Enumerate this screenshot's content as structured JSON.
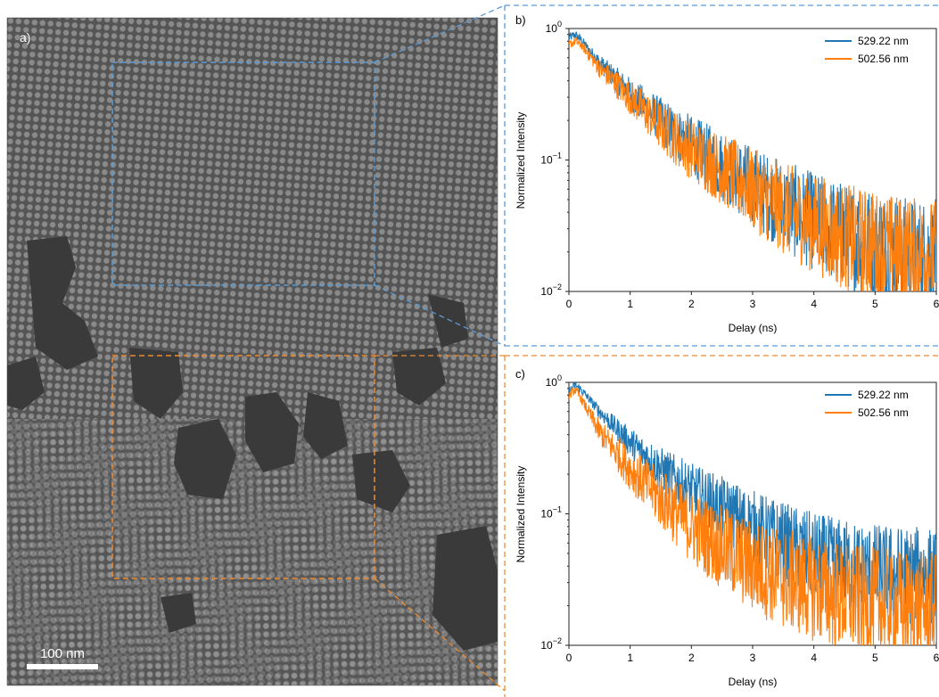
{
  "panel_a": {
    "label": "a)",
    "scale_bar_label": "100 nm"
  },
  "chart_data": [
    {
      "type": "line",
      "panel_label": "b)",
      "xlabel": "Delay (ns)",
      "ylabel": "Normalized Intensity",
      "x_ticks": [
        "0",
        "1",
        "2",
        "3",
        "4",
        "5",
        "6"
      ],
      "y_ticks": [
        "10^-2",
        "10^-1",
        "10^0"
      ],
      "xlim": [
        0,
        6
      ],
      "ylim": [
        0.01,
        1
      ],
      "y_scale": "log",
      "legend_position": "top-right",
      "series": [
        {
          "name": "529.22 nm",
          "color": "#1f77b4",
          "x": [
            0,
            0.1,
            0.2,
            0.5,
            1.0,
            1.5,
            2.0,
            2.5,
            3.0,
            3.5,
            4.0,
            4.5,
            5.0,
            5.5,
            6.0
          ],
          "y": [
            0.85,
            0.9,
            0.82,
            0.55,
            0.32,
            0.2,
            0.13,
            0.09,
            0.063,
            0.045,
            0.034,
            0.027,
            0.023,
            0.02,
            0.019
          ]
        },
        {
          "name": "502.56 nm",
          "color": "#ff7f0e",
          "x": [
            0,
            0.1,
            0.2,
            0.5,
            1.0,
            1.5,
            2.0,
            2.5,
            3.0,
            3.5,
            4.0,
            4.5,
            5.0,
            5.5,
            6.0
          ],
          "y": [
            0.75,
            0.8,
            0.75,
            0.5,
            0.3,
            0.18,
            0.12,
            0.085,
            0.06,
            0.043,
            0.033,
            0.026,
            0.022,
            0.02,
            0.019
          ]
        }
      ]
    },
    {
      "type": "line",
      "panel_label": "c)",
      "xlabel": "Delay (ns)",
      "ylabel": "Normalized Intensity",
      "x_ticks": [
        "0",
        "1",
        "2",
        "3",
        "4",
        "5",
        "6"
      ],
      "y_ticks": [
        "10^-2",
        "10^-1",
        "10^0"
      ],
      "xlim": [
        0,
        6
      ],
      "ylim": [
        0.01,
        1
      ],
      "y_scale": "log",
      "legend_position": "top-right",
      "series": [
        {
          "name": "529.22 nm",
          "color": "#1f77b4",
          "x": [
            0,
            0.1,
            0.2,
            0.5,
            1.0,
            1.5,
            2.0,
            2.5,
            3.0,
            3.5,
            4.0,
            4.5,
            5.0,
            5.5,
            6.0
          ],
          "y": [
            0.85,
            0.95,
            0.88,
            0.6,
            0.35,
            0.22,
            0.15,
            0.11,
            0.08,
            0.06,
            0.047,
            0.04,
            0.036,
            0.034,
            0.033
          ]
        },
        {
          "name": "502.56 nm",
          "color": "#ff7f0e",
          "x": [
            0,
            0.1,
            0.2,
            0.5,
            1.0,
            1.5,
            2.0,
            2.5,
            3.0,
            3.5,
            4.0,
            4.5,
            5.0,
            5.5,
            6.0
          ],
          "y": [
            0.8,
            0.88,
            0.75,
            0.42,
            0.22,
            0.13,
            0.08,
            0.055,
            0.04,
            0.032,
            0.027,
            0.023,
            0.021,
            0.02,
            0.019
          ]
        }
      ]
    }
  ],
  "colors": {
    "blue": "#1f77b4",
    "orange": "#ff7f0e",
    "blue_box": "#5b9bd5",
    "orange_box": "#ed8b2e"
  }
}
